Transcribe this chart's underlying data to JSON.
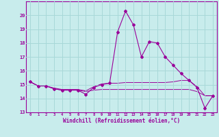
{
  "xlabel": "Windchill (Refroidissement éolien,°C)",
  "background_color": "#c8ecec",
  "grid_color": "#a8d8d8",
  "line_color": "#990099",
  "x": [
    0,
    1,
    2,
    3,
    4,
    5,
    6,
    7,
    8,
    9,
    10,
    11,
    12,
    13,
    14,
    15,
    16,
    17,
    18,
    19,
    20,
    21,
    22,
    23
  ],
  "y_main": [
    15.2,
    14.9,
    14.9,
    14.7,
    14.6,
    14.6,
    14.6,
    14.3,
    14.8,
    15.0,
    15.1,
    18.8,
    20.3,
    19.3,
    17.0,
    18.1,
    18.0,
    17.0,
    16.4,
    15.8,
    15.3,
    14.8,
    13.3,
    14.2
  ],
  "y_line2": [
    15.2,
    14.9,
    14.9,
    14.75,
    14.65,
    14.65,
    14.65,
    14.55,
    14.85,
    15.05,
    15.1,
    15.1,
    15.15,
    15.15,
    15.15,
    15.15,
    15.15,
    15.15,
    15.2,
    15.3,
    15.3,
    14.85,
    14.2,
    14.2
  ],
  "y_line3": [
    15.2,
    14.9,
    14.9,
    14.7,
    14.6,
    14.6,
    14.6,
    14.5,
    14.6,
    14.65,
    14.65,
    14.65,
    14.65,
    14.65,
    14.65,
    14.65,
    14.65,
    14.65,
    14.65,
    14.65,
    14.65,
    14.5,
    14.2,
    14.2
  ],
  "ylim": [
    13,
    21
  ],
  "xlim": [
    -0.5,
    23.5
  ],
  "yticks": [
    13,
    14,
    15,
    16,
    17,
    18,
    19,
    20
  ],
  "xticks": [
    0,
    1,
    2,
    3,
    4,
    5,
    6,
    7,
    8,
    9,
    10,
    11,
    12,
    13,
    14,
    15,
    16,
    17,
    18,
    19,
    20,
    21,
    22,
    23
  ]
}
